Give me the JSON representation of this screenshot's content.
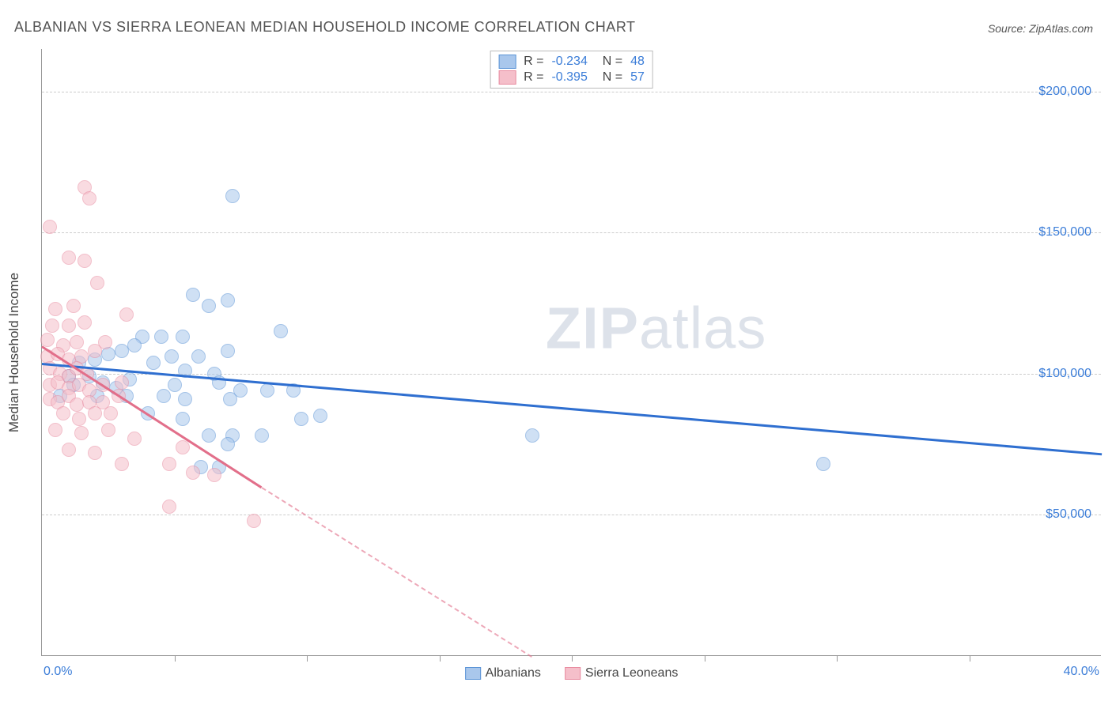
{
  "title": "ALBANIAN VS SIERRA LEONEAN MEDIAN HOUSEHOLD INCOME CORRELATION CHART",
  "source_label": "Source: ZipAtlas.com",
  "watermark": {
    "zip": "ZIP",
    "atlas": "atlas"
  },
  "ylabel": "Median Household Income",
  "chart": {
    "type": "scatter",
    "xlim": [
      0,
      40
    ],
    "ylim": [
      0,
      215000
    ],
    "x_axis_min_label": "0.0%",
    "x_axis_max_label": "40.0%",
    "y_gridlines": [
      50000,
      100000,
      150000,
      200000
    ],
    "y_tick_labels": [
      "$50,000",
      "$100,000",
      "$150,000",
      "$200,000"
    ],
    "x_tick_positions": [
      5,
      10,
      15,
      20,
      25,
      30,
      35
    ],
    "background_color": "#ffffff",
    "grid_color": "#cccccc",
    "axis_color": "#999999",
    "marker_radius": 9,
    "marker_opacity": 0.55,
    "series": [
      {
        "name": "Albanians",
        "fill": "#a9c7ec",
        "stroke": "#5a93d6",
        "line_color": "#2f6fd0",
        "r_value": "-0.234",
        "n_value": "48",
        "points": [
          [
            7.2,
            163000
          ],
          [
            5.7,
            128000
          ],
          [
            6.3,
            124000
          ],
          [
            7.0,
            126000
          ],
          [
            9.0,
            115000
          ],
          [
            3.8,
            113000
          ],
          [
            4.5,
            113000
          ],
          [
            5.3,
            113000
          ],
          [
            3.0,
            108000
          ],
          [
            3.5,
            110000
          ],
          [
            2.0,
            105000
          ],
          [
            2.5,
            107000
          ],
          [
            4.2,
            104000
          ],
          [
            4.9,
            106000
          ],
          [
            5.9,
            106000
          ],
          [
            5.4,
            101000
          ],
          [
            6.5,
            100000
          ],
          [
            7.0,
            108000
          ],
          [
            6.7,
            97000
          ],
          [
            1.0,
            99000
          ],
          [
            1.4,
            104000
          ],
          [
            1.2,
            96000
          ],
          [
            0.7,
            92000
          ],
          [
            1.8,
            99000
          ],
          [
            2.3,
            97000
          ],
          [
            2.1,
            92000
          ],
          [
            2.8,
            95000
          ],
          [
            3.3,
            98000
          ],
          [
            3.2,
            92000
          ],
          [
            5.0,
            96000
          ],
          [
            5.4,
            91000
          ],
          [
            4.6,
            92000
          ],
          [
            7.5,
            94000
          ],
          [
            7.1,
            91000
          ],
          [
            8.5,
            94000
          ],
          [
            9.5,
            94000
          ],
          [
            4.0,
            86000
          ],
          [
            5.3,
            84000
          ],
          [
            6.3,
            78000
          ],
          [
            7.2,
            78000
          ],
          [
            8.3,
            78000
          ],
          [
            6.0,
            67000
          ],
          [
            6.7,
            67000
          ],
          [
            7.0,
            75000
          ],
          [
            9.8,
            84000
          ],
          [
            10.5,
            85000
          ],
          [
            18.5,
            78000
          ],
          [
            29.5,
            68000
          ]
        ],
        "trend": {
          "x1": 0,
          "y1": 104000,
          "x2": 40,
          "y2": 72000,
          "dash": false
        }
      },
      {
        "name": "Sierra Leoneans",
        "fill": "#f5bfca",
        "stroke": "#e88ba0",
        "line_color": "#e26f8a",
        "r_value": "-0.395",
        "n_value": "57",
        "points": [
          [
            1.6,
            166000
          ],
          [
            1.8,
            162000
          ],
          [
            0.3,
            152000
          ],
          [
            1.0,
            141000
          ],
          [
            1.6,
            140000
          ],
          [
            2.1,
            132000
          ],
          [
            0.5,
            123000
          ],
          [
            1.2,
            124000
          ],
          [
            3.2,
            121000
          ],
          [
            0.4,
            117000
          ],
          [
            1.0,
            117000
          ],
          [
            1.6,
            118000
          ],
          [
            0.2,
            112000
          ],
          [
            0.8,
            110000
          ],
          [
            1.3,
            111000
          ],
          [
            2.4,
            111000
          ],
          [
            0.2,
            106000
          ],
          [
            0.6,
            107000
          ],
          [
            1.0,
            105000
          ],
          [
            1.5,
            106000
          ],
          [
            2.0,
            108000
          ],
          [
            0.3,
            102000
          ],
          [
            0.7,
            100000
          ],
          [
            1.0,
            99000
          ],
          [
            1.3,
            102000
          ],
          [
            1.7,
            100000
          ],
          [
            0.3,
            96000
          ],
          [
            0.6,
            97000
          ],
          [
            1.0,
            95000
          ],
          [
            1.4,
            96000
          ],
          [
            1.8,
            94000
          ],
          [
            2.3,
            96000
          ],
          [
            3.0,
            97000
          ],
          [
            0.3,
            91000
          ],
          [
            0.6,
            90000
          ],
          [
            1.0,
            92000
          ],
          [
            1.3,
            89000
          ],
          [
            1.8,
            90000
          ],
          [
            2.3,
            90000
          ],
          [
            2.9,
            92000
          ],
          [
            0.8,
            86000
          ],
          [
            1.4,
            84000
          ],
          [
            2.0,
            86000
          ],
          [
            2.6,
            86000
          ],
          [
            0.5,
            80000
          ],
          [
            1.5,
            79000
          ],
          [
            2.5,
            80000
          ],
          [
            3.5,
            77000
          ],
          [
            1.0,
            73000
          ],
          [
            2.0,
            72000
          ],
          [
            5.3,
            74000
          ],
          [
            3.0,
            68000
          ],
          [
            4.8,
            68000
          ],
          [
            5.7,
            65000
          ],
          [
            6.5,
            64000
          ],
          [
            4.8,
            53000
          ],
          [
            8.0,
            48000
          ]
        ],
        "trend": {
          "x1": 0,
          "y1": 110000,
          "x2": 8.3,
          "y2": 60000,
          "dash": false
        },
        "trend_ext": {
          "x1": 8.3,
          "y1": 60000,
          "x2": 18.5,
          "y2": 0,
          "dash": true
        }
      }
    ],
    "legend_bottom": [
      {
        "label": "Albanians",
        "fill": "#a9c7ec",
        "stroke": "#5a93d6"
      },
      {
        "label": "Sierra Leoneans",
        "fill": "#f5bfca",
        "stroke": "#e88ba0"
      }
    ]
  }
}
